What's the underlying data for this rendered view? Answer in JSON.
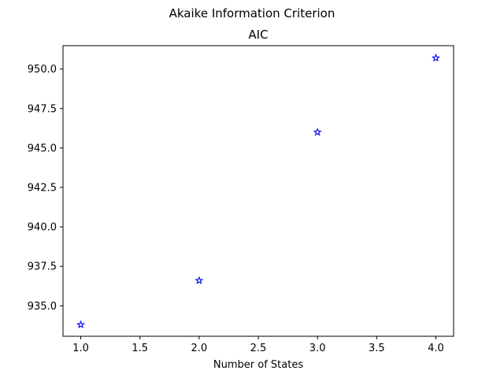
{
  "chart_data": {
    "type": "scatter",
    "suptitle": "Akaike Information Criterion",
    "title": "AIC",
    "xlabel": "Number of States",
    "ylabel": "",
    "xlim": [
      0.85,
      4.15
    ],
    "ylim": [
      933.07,
      951.48
    ],
    "x_ticks": [
      1.0,
      1.5,
      2.0,
      2.5,
      3.0,
      3.5,
      4.0
    ],
    "y_ticks": [
      935.0,
      937.5,
      940.0,
      942.5,
      945.0,
      947.5,
      950.0
    ],
    "x_tick_labels": [
      "1.0",
      "1.5",
      "2.0",
      "2.5",
      "3.0",
      "3.5",
      "4.0"
    ],
    "y_tick_labels": [
      "935.0",
      "937.5",
      "940.0",
      "942.5",
      "945.0",
      "947.5",
      "950.0"
    ],
    "grid": false,
    "marker": "star",
    "marker_color": "#0000ff",
    "series": [
      {
        "x": [
          1,
          2,
          3,
          4
        ],
        "y": [
          933.8,
          936.6,
          946.0,
          950.7
        ]
      }
    ]
  }
}
